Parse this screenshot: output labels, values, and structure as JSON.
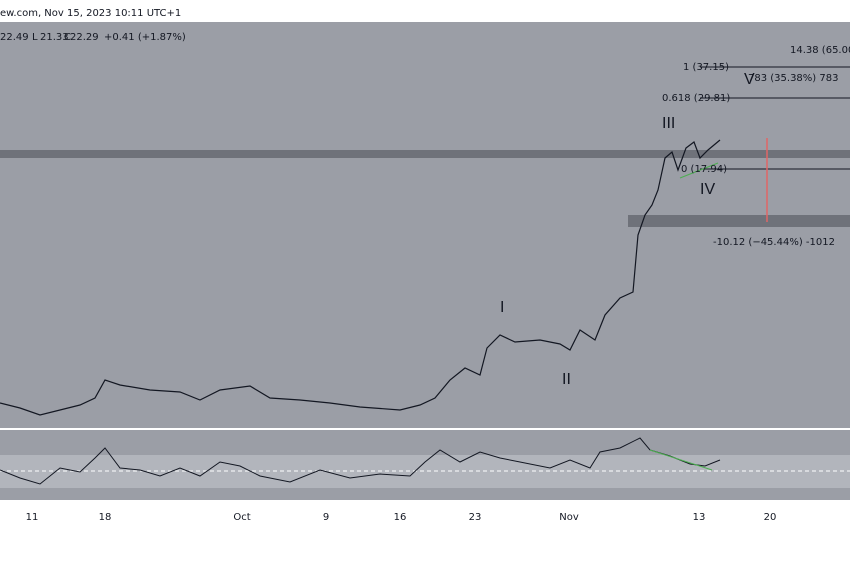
{
  "header": {
    "title": "ew.com, Nov 15, 2023 10:11 UTC+1",
    "ohlc": [
      "22.49",
      "L",
      "21.33",
      "C",
      "22.29",
      "+0.41 (+1.87%)"
    ]
  },
  "annotations": {
    "target_top": "14.38 (65.00%",
    "fib_1": "1 (37.15)",
    "fib_0618": "0.618 (29.81)",
    "fib_0": "0 (17.94)",
    "measure_up": "783 (35.38%) 783",
    "measure_down": "-10.12 (−45.44%) -1012"
  },
  "waves": [
    "I",
    "II",
    "III",
    "IV",
    "V"
  ],
  "x_axis": [
    "11",
    "18",
    "Oct",
    "9",
    "16",
    "23",
    "Nov",
    "13",
    "20"
  ]
}
